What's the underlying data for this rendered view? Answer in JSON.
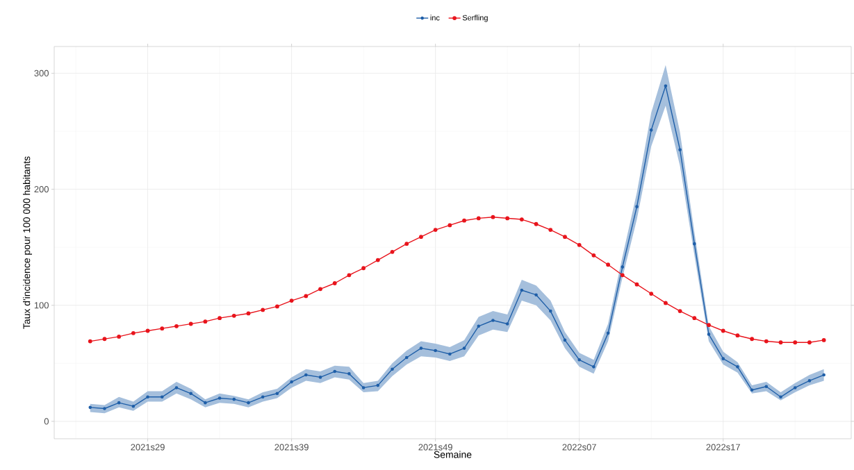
{
  "chart_data": {
    "type": "line",
    "xlabel": "Semaine",
    "ylabel": "Taux d'incidence pour 100 000 habitants",
    "categories": [
      null,
      null,
      null,
      null,
      "2021s29",
      null,
      null,
      null,
      null,
      null,
      null,
      null,
      null,
      null,
      "2021s39",
      null,
      null,
      null,
      null,
      null,
      null,
      null,
      null,
      null,
      "2021s49",
      null,
      null,
      null,
      null,
      null,
      null,
      null,
      null,
      null,
      "2022s07",
      null,
      null,
      null,
      null,
      null,
      null,
      null,
      null,
      null,
      "2022s17",
      null,
      null,
      null,
      null,
      null,
      null,
      null
    ],
    "series": [
      {
        "name": "inc",
        "color": "#1f5fa8",
        "values": [
          12,
          11,
          16,
          13,
          21,
          21,
          29,
          24,
          16,
          20,
          19,
          16,
          21,
          24,
          34,
          40,
          38,
          43,
          41,
          29,
          31,
          45,
          55,
          63,
          61,
          58,
          63,
          82,
          87,
          84,
          113,
          109,
          95,
          70,
          53,
          47,
          76,
          133,
          185,
          251,
          289,
          234,
          153,
          75,
          54,
          47,
          27,
          30,
          21,
          29,
          35,
          40
        ],
        "lower": [
          8,
          7,
          12,
          9,
          17,
          17,
          24,
          19,
          12,
          16,
          15,
          12,
          17,
          20,
          29,
          35,
          33,
          38,
          36,
          25,
          26,
          39,
          49,
          56,
          55,
          52,
          56,
          74,
          79,
          77,
          104,
          100,
          87,
          63,
          47,
          41,
          69,
          124,
          174,
          237,
          272,
          220,
          143,
          69,
          49,
          42,
          24,
          26,
          18,
          25,
          31,
          35
        ],
        "upper": [
          15,
          14,
          21,
          17,
          26,
          26,
          34,
          28,
          19,
          24,
          22,
          19,
          25,
          28,
          38,
          45,
          43,
          48,
          47,
          33,
          35,
          50,
          61,
          69,
          67,
          64,
          70,
          90,
          95,
          92,
          122,
          117,
          104,
          77,
          59,
          53,
          84,
          142,
          197,
          266,
          307,
          249,
          163,
          82,
          60,
          51,
          31,
          34,
          25,
          33,
          40,
          45
        ]
      },
      {
        "name": "Serfling",
        "color": "#e8141c",
        "values": [
          69,
          71,
          73,
          76,
          78,
          80,
          82,
          84,
          86,
          89,
          91,
          93,
          96,
          99,
          104,
          108,
          114,
          119,
          126,
          132,
          139,
          146,
          153,
          159,
          165,
          169,
          173,
          175,
          176,
          175,
          174,
          170,
          165,
          159,
          152,
          143,
          135,
          126,
          118,
          110,
          102,
          95,
          89,
          83,
          78,
          74,
          71,
          69,
          68,
          68,
          68,
          70
        ]
      }
    ],
    "ylim": [
      -15,
      323
    ],
    "yticks": [
      0,
      100,
      200,
      300
    ],
    "grid": true,
    "legend": "top",
    "marker": "circle",
    "line_style": "solid"
  }
}
